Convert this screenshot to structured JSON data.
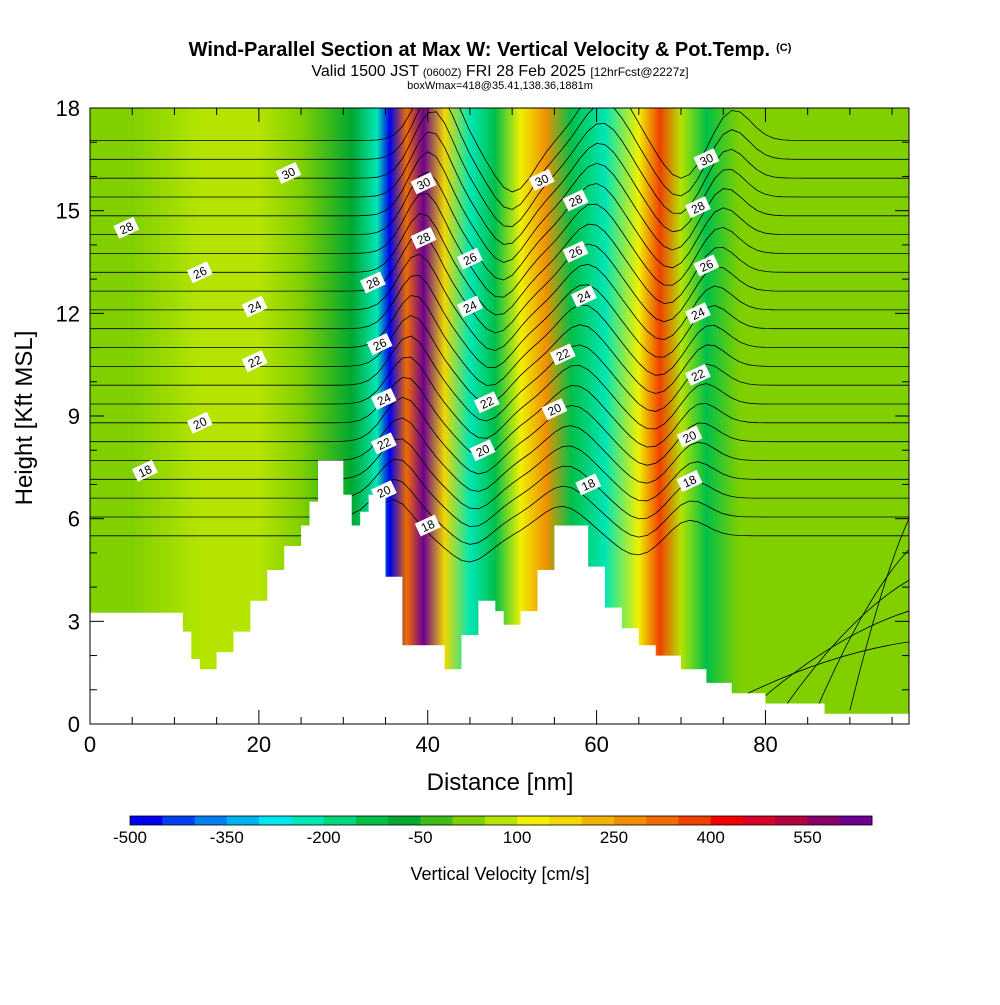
{
  "chart_data": {
    "type": "heatmap",
    "title": "Wind-Parallel Section at Max W: Vertical Velocity & Pot.Temp.",
    "title_mark": "(C)",
    "subtitle": {
      "prefix": "Valid 1500 JST ",
      "utc": "(0600Z)",
      "date": " FRI 28 Feb 2025 ",
      "forecast": "[12hrFcst@2227z]"
    },
    "box_info": "boxWmax=418@35.41,138.36,1881m",
    "xlabel": "Distance [nm]",
    "ylabel": "Height [Kft MSL]",
    "xlim": [
      0,
      97
    ],
    "ylim": [
      0,
      18
    ],
    "x_ticks": [
      "0",
      "20",
      "40",
      "60",
      "80"
    ],
    "y_ticks": [
      "0",
      "3",
      "6",
      "9",
      "12",
      "15",
      "18"
    ],
    "colorbar": {
      "label": "Vertical Velocity [cm/s]",
      "min": -500,
      "max": 650,
      "step": 50,
      "tick_labels": [
        "-500",
        "-350",
        "-200",
        "-50",
        "100",
        "250",
        "400",
        "550"
      ],
      "colors": [
        "#0000f0",
        "#0040f0",
        "#0080f0",
        "#00b4f0",
        "#00e6f0",
        "#00e6b4",
        "#00d880",
        "#00c048",
        "#00a830",
        "#40bc18",
        "#80d000",
        "#b4e400",
        "#f0f000",
        "#f0d800",
        "#f0b400",
        "#f09000",
        "#f06c00",
        "#f04000",
        "#f00000",
        "#d80028",
        "#b00040",
        "#88006c",
        "#6c0090"
      ]
    },
    "vertical_velocity_bands": [
      {
        "x": 0,
        "value": 0
      },
      {
        "x": 5,
        "value": 0
      },
      {
        "x": 13,
        "value": 90
      },
      {
        "x": 20,
        "value": 50
      },
      {
        "x": 25,
        "value": 0
      },
      {
        "x": 31,
        "value": -100
      },
      {
        "x": 34,
        "value": -230
      },
      {
        "x": 35.5,
        "value": -480
      },
      {
        "x": 37.5,
        "value": 300
      },
      {
        "x": 39.5,
        "value": 600
      },
      {
        "x": 42,
        "value": 150
      },
      {
        "x": 45,
        "value": -230
      },
      {
        "x": 48,
        "value": -120
      },
      {
        "x": 51,
        "value": 100
      },
      {
        "x": 54,
        "value": 250
      },
      {
        "x": 57,
        "value": -150
      },
      {
        "x": 61,
        "value": -230
      },
      {
        "x": 65,
        "value": 120
      },
      {
        "x": 67.5,
        "value": 360
      },
      {
        "x": 70,
        "value": 80
      },
      {
        "x": 73,
        "value": -150
      },
      {
        "x": 77,
        "value": 0
      },
      {
        "x": 83,
        "value": 30
      },
      {
        "x": 90,
        "value": 0
      },
      {
        "x": 97,
        "value": 40
      }
    ],
    "terrain": [
      {
        "x": 0,
        "h": 3.25
      },
      {
        "x": 10,
        "h": 3.25
      },
      {
        "x": 11,
        "h": 2.7
      },
      {
        "x": 12,
        "h": 1.9
      },
      {
        "x": 13,
        "h": 1.6
      },
      {
        "x": 15,
        "h": 2.1
      },
      {
        "x": 17,
        "h": 2.7
      },
      {
        "x": 19,
        "h": 3.6
      },
      {
        "x": 21,
        "h": 4.5
      },
      {
        "x": 23,
        "h": 5.2
      },
      {
        "x": 25,
        "h": 5.8
      },
      {
        "x": 26,
        "h": 6.5
      },
      {
        "x": 27,
        "h": 7.7
      },
      {
        "x": 29,
        "h": 7.7
      },
      {
        "x": 30,
        "h": 6.7
      },
      {
        "x": 31,
        "h": 5.8
      },
      {
        "x": 32,
        "h": 6.2
      },
      {
        "x": 33,
        "h": 6.7
      },
      {
        "x": 34,
        "h": 6.7
      },
      {
        "x": 35,
        "h": 4.3
      },
      {
        "x": 36,
        "h": 4.3
      },
      {
        "x": 37,
        "h": 2.3
      },
      {
        "x": 40,
        "h": 2.3
      },
      {
        "x": 42,
        "h": 1.6
      },
      {
        "x": 44,
        "h": 2.6
      },
      {
        "x": 46,
        "h": 3.6
      },
      {
        "x": 48,
        "h": 3.3
      },
      {
        "x": 49,
        "h": 2.9
      },
      {
        "x": 51,
        "h": 3.3
      },
      {
        "x": 53,
        "h": 4.5
      },
      {
        "x": 55,
        "h": 5.8
      },
      {
        "x": 57,
        "h": 5.8
      },
      {
        "x": 59,
        "h": 4.6
      },
      {
        "x": 61,
        "h": 3.4
      },
      {
        "x": 63,
        "h": 2.8
      },
      {
        "x": 65,
        "h": 2.3
      },
      {
        "x": 67,
        "h": 2.0
      },
      {
        "x": 70,
        "h": 1.6
      },
      {
        "x": 73,
        "h": 1.2
      },
      {
        "x": 76,
        "h": 0.9
      },
      {
        "x": 80,
        "h": 0.6
      },
      {
        "x": 85,
        "h": 0.6
      },
      {
        "x": 87,
        "h": 0.3
      },
      {
        "x": 97,
        "h": 0.3
      }
    ],
    "isentrope_labels": [
      {
        "text": "30",
        "x": 23.5,
        "y": 16.1
      },
      {
        "text": "28",
        "x": 4.3,
        "y": 14.5
      },
      {
        "text": "26",
        "x": 13,
        "y": 13.2
      },
      {
        "text": "24",
        "x": 19.5,
        "y": 12.2
      },
      {
        "text": "22",
        "x": 19.5,
        "y": 10.6
      },
      {
        "text": "20",
        "x": 13,
        "y": 8.8
      },
      {
        "text": "18",
        "x": 6.5,
        "y": 7.4
      },
      {
        "text": "28",
        "x": 33.5,
        "y": 12.9
      },
      {
        "text": "26",
        "x": 34.3,
        "y": 11.1
      },
      {
        "text": "24",
        "x": 34.8,
        "y": 9.5
      },
      {
        "text": "22",
        "x": 34.8,
        "y": 8.2
      },
      {
        "text": "20",
        "x": 34.8,
        "y": 6.8
      },
      {
        "text": "30",
        "x": 39.5,
        "y": 15.8
      },
      {
        "text": "28",
        "x": 39.5,
        "y": 14.2
      },
      {
        "text": "18",
        "x": 40,
        "y": 5.8
      },
      {
        "text": "26",
        "x": 45,
        "y": 13.6
      },
      {
        "text": "24",
        "x": 45,
        "y": 12.2
      },
      {
        "text": "22",
        "x": 47,
        "y": 9.4
      },
      {
        "text": "20",
        "x": 46.5,
        "y": 8.0
      },
      {
        "text": "30",
        "x": 53.5,
        "y": 15.9
      },
      {
        "text": "28",
        "x": 57.5,
        "y": 15.3
      },
      {
        "text": "26",
        "x": 57.5,
        "y": 13.8
      },
      {
        "text": "24",
        "x": 58.5,
        "y": 12.5
      },
      {
        "text": "22",
        "x": 56,
        "y": 10.8
      },
      {
        "text": "20",
        "x": 55,
        "y": 9.2
      },
      {
        "text": "18",
        "x": 59,
        "y": 7.0
      },
      {
        "text": "30",
        "x": 73,
        "y": 16.5
      },
      {
        "text": "28",
        "x": 72,
        "y": 15.1
      },
      {
        "text": "26",
        "x": 73,
        "y": 13.4
      },
      {
        "text": "24",
        "x": 72,
        "y": 12.0
      },
      {
        "text": "22",
        "x": 72,
        "y": 10.2
      },
      {
        "text": "20",
        "x": 71,
        "y": 8.4
      },
      {
        "text": "18",
        "x": 71,
        "y": 7.1
      }
    ]
  }
}
